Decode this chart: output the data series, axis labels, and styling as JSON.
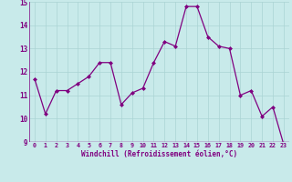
{
  "x": [
    0,
    1,
    2,
    3,
    4,
    5,
    6,
    7,
    8,
    9,
    10,
    11,
    12,
    13,
    14,
    15,
    16,
    17,
    18,
    19,
    20,
    21,
    22,
    23
  ],
  "y": [
    11.7,
    10.2,
    11.2,
    11.2,
    11.5,
    11.8,
    12.4,
    12.4,
    10.6,
    11.1,
    11.3,
    12.4,
    13.3,
    13.1,
    14.8,
    14.8,
    13.5,
    13.1,
    13.0,
    11.0,
    11.2,
    10.1,
    10.5,
    8.9
  ],
  "line_color": "#800080",
  "marker": "D",
  "marker_size": 2.0,
  "bg_color": "#c8eaea",
  "grid_color": "#aad4d4",
  "xlabel": "Windchill (Refroidissement éolien,°C)",
  "ylabel": "",
  "title": "",
  "xlim": [
    -0.5,
    23.5
  ],
  "ylim": [
    9,
    15
  ],
  "yticks": [
    9,
    10,
    11,
    12,
    13,
    14,
    15
  ],
  "xticks": [
    0,
    1,
    2,
    3,
    4,
    5,
    6,
    7,
    8,
    9,
    10,
    11,
    12,
    13,
    14,
    15,
    16,
    17,
    18,
    19,
    20,
    21,
    22,
    23
  ]
}
